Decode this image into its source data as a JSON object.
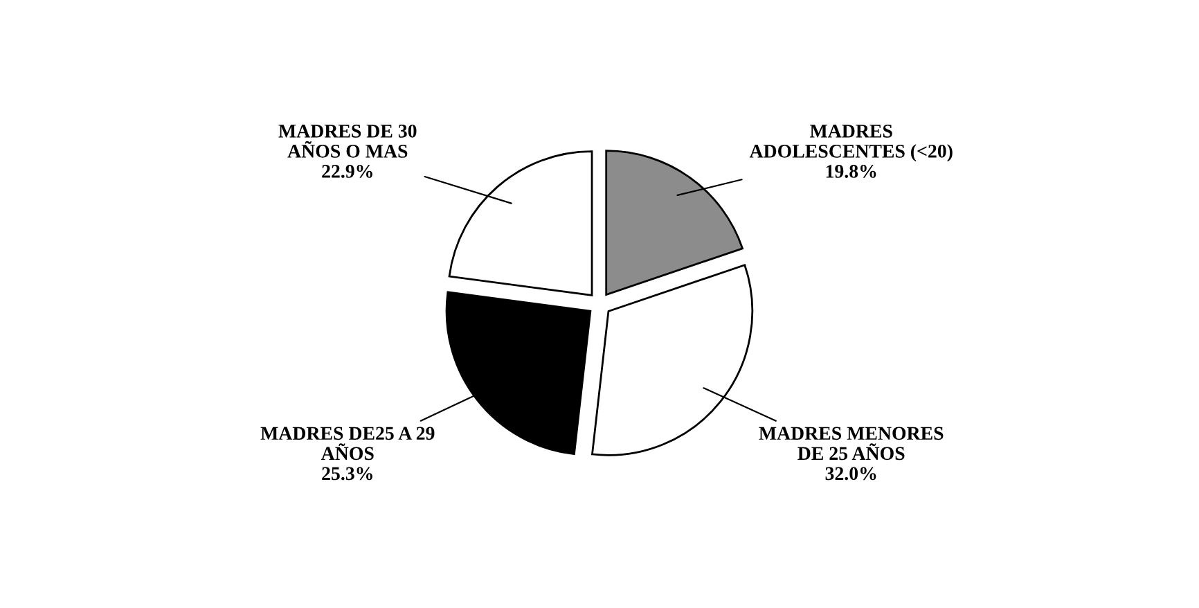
{
  "chart_data": {
    "type": "pie",
    "categories": [
      "MADRES\nADOLESCENTES (<20)",
      "MADRES MENORES\nDE 25 AÑOS",
      "MADRES DE25 A 29\nAÑOS",
      "MADRES DE 30\nAÑOS O MAS"
    ],
    "values": [
      19.8,
      32.0,
      25.3,
      22.9
    ],
    "value_labels": [
      "19.8%",
      "32.0%",
      "25.3%",
      "22.9%"
    ],
    "colors": [
      "#8c8c8c",
      "#ffffff",
      "#000000",
      "#ffffff"
    ],
    "legend": false
  }
}
